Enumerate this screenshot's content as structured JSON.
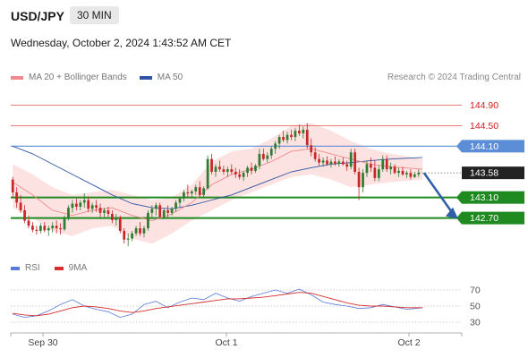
{
  "header": {
    "symbol": "USD/JPY",
    "timeframe": "30 MIN",
    "timestamp": "Wednesday, October 2, 2024 1:43:52 AM CET"
  },
  "legend": {
    "ma20_label": "MA 20 + Bollinger Bands",
    "ma50_label": "MA 50",
    "credit": "Research © 2024 Trading Central"
  },
  "rsi_legend": {
    "rsi_label": "RSI",
    "ma9_label": "9MA"
  },
  "colors": {
    "ma20": "#f08a8a",
    "ma50": "#2f55a4",
    "bollinger_fill": "#fde2e2",
    "candle_up": "#2e7d32",
    "candle_down": "#c62828",
    "resistance": "#e05555",
    "pivot": "#5b8ed6",
    "support": "#1f8a1f",
    "rsi": "#5a7bd8",
    "rsi_ma": "#d32f2f",
    "arrow": "#2f5fa7"
  },
  "chart_data": [
    {
      "type": "candlestick",
      "title": "USD/JPY 30 MIN",
      "x_labels": [
        "Sep 30",
        "Oct 1",
        "Oct 2"
      ],
      "y_range": [
        142.1,
        145.1
      ],
      "levels": [
        {
          "value": 144.9,
          "label": "144.90",
          "kind": "resistance"
        },
        {
          "value": 144.5,
          "label": "144.50",
          "kind": "resistance"
        },
        {
          "value": 144.1,
          "label": "144.10",
          "kind": "pivot"
        },
        {
          "value": 143.58,
          "label": "143.58",
          "kind": "last"
        },
        {
          "value": 143.1,
          "label": "143.10",
          "kind": "support"
        },
        {
          "value": 142.7,
          "label": "142.70",
          "kind": "support"
        }
      ],
      "candles": [
        [
          143.45,
          143.5,
          143.1,
          143.2
        ],
        [
          143.2,
          143.3,
          142.9,
          143.0
        ],
        [
          143.0,
          143.15,
          142.8,
          142.85
        ],
        [
          142.85,
          142.95,
          142.6,
          142.65
        ],
        [
          142.65,
          142.75,
          142.5,
          142.55
        ],
        [
          142.55,
          142.62,
          142.42,
          142.47
        ],
        [
          142.47,
          142.55,
          142.38,
          142.45
        ],
        [
          142.45,
          142.6,
          142.4,
          142.55
        ],
        [
          142.55,
          142.62,
          142.42,
          142.46
        ],
        [
          142.46,
          142.55,
          142.35,
          142.5
        ],
        [
          142.5,
          142.62,
          142.42,
          142.55
        ],
        [
          142.55,
          142.65,
          142.4,
          142.5
        ],
        [
          142.5,
          142.6,
          142.38,
          142.48
        ],
        [
          142.48,
          142.75,
          142.45,
          142.7
        ],
        [
          142.7,
          142.95,
          142.65,
          142.9
        ],
        [
          142.9,
          143.05,
          142.8,
          142.98
        ],
        [
          142.98,
          143.08,
          142.85,
          142.92
        ],
        [
          142.92,
          143.05,
          142.85,
          143.0
        ],
        [
          143.0,
          143.18,
          142.9,
          143.05
        ],
        [
          143.05,
          143.12,
          142.82,
          142.88
        ],
        [
          142.88,
          143.0,
          142.8,
          142.95
        ],
        [
          142.95,
          143.05,
          142.82,
          142.9
        ],
        [
          142.9,
          142.98,
          142.72,
          142.8
        ],
        [
          142.8,
          142.9,
          142.7,
          142.85
        ],
        [
          142.85,
          142.92,
          142.72,
          142.78
        ],
        [
          142.78,
          142.85,
          142.6,
          142.66
        ],
        [
          142.66,
          142.78,
          142.55,
          142.72
        ],
        [
          142.72,
          142.75,
          142.4,
          142.45
        ],
        [
          142.45,
          142.5,
          142.2,
          142.28
        ],
        [
          142.28,
          142.4,
          142.15,
          142.3
        ],
        [
          142.3,
          142.45,
          142.25,
          142.4
        ],
        [
          142.4,
          142.55,
          142.35,
          142.5
        ],
        [
          142.5,
          142.62,
          142.35,
          142.4
        ],
        [
          142.4,
          142.55,
          142.32,
          142.5
        ],
        [
          142.5,
          142.85,
          142.45,
          142.8
        ],
        [
          142.8,
          142.95,
          142.7,
          142.88
        ],
        [
          142.88,
          143.0,
          142.75,
          142.95
        ],
        [
          142.95,
          143.0,
          142.68,
          142.72
        ],
        [
          142.72,
          142.88,
          142.68,
          142.85
        ],
        [
          142.85,
          142.95,
          142.72,
          142.8
        ],
        [
          142.8,
          142.92,
          142.75,
          142.88
        ],
        [
          142.88,
          143.05,
          142.82,
          143.0
        ],
        [
          143.0,
          143.12,
          142.92,
          143.08
        ],
        [
          143.08,
          143.25,
          143.02,
          143.2
        ],
        [
          143.2,
          143.35,
          143.1,
          143.18
        ],
        [
          143.18,
          143.25,
          143.08,
          143.22
        ],
        [
          143.22,
          143.35,
          143.15,
          143.3
        ],
        [
          143.3,
          143.42,
          143.12,
          143.15
        ],
        [
          143.15,
          143.32,
          143.08,
          143.28
        ],
        [
          143.28,
          143.92,
          143.25,
          143.85
        ],
        [
          143.85,
          143.95,
          143.55,
          143.6
        ],
        [
          143.6,
          143.75,
          143.5,
          143.7
        ],
        [
          143.7,
          143.82,
          143.6,
          143.65
        ],
        [
          143.65,
          143.72,
          143.55,
          143.6
        ],
        [
          143.6,
          143.7,
          143.5,
          143.65
        ],
        [
          143.65,
          143.75,
          143.55,
          143.6
        ],
        [
          143.6,
          143.68,
          143.48,
          143.55
        ],
        [
          143.55,
          143.65,
          143.45,
          143.5
        ],
        [
          143.5,
          143.62,
          143.42,
          143.58
        ],
        [
          143.58,
          143.72,
          143.5,
          143.68
        ],
        [
          143.68,
          143.78,
          143.55,
          143.62
        ],
        [
          143.62,
          143.75,
          143.58,
          143.72
        ],
        [
          143.72,
          144.05,
          143.65,
          143.95
        ],
        [
          143.95,
          144.05,
          143.82,
          143.85
        ],
        [
          143.85,
          143.98,
          143.78,
          143.92
        ],
        [
          143.92,
          144.1,
          143.85,
          144.05
        ],
        [
          144.05,
          144.2,
          143.95,
          144.15
        ],
        [
          144.15,
          144.32,
          144.05,
          144.28
        ],
        [
          144.28,
          144.4,
          144.18,
          144.22
        ],
        [
          144.22,
          144.38,
          144.15,
          144.32
        ],
        [
          144.32,
          144.42,
          144.22,
          144.28
        ],
        [
          144.28,
          144.45,
          144.2,
          144.4
        ],
        [
          144.4,
          144.52,
          144.3,
          144.35
        ],
        [
          144.35,
          144.48,
          144.25,
          144.42
        ],
        [
          144.42,
          144.55,
          144.05,
          144.12
        ],
        [
          144.12,
          144.25,
          143.9,
          143.98
        ],
        [
          143.98,
          144.08,
          143.8,
          143.85
        ],
        [
          143.85,
          143.95,
          143.72,
          143.78
        ],
        [
          143.78,
          143.88,
          143.7,
          143.82
        ],
        [
          143.82,
          143.9,
          143.72,
          143.75
        ],
        [
          143.75,
          143.85,
          143.68,
          143.8
        ],
        [
          143.8,
          143.9,
          143.72,
          143.76
        ],
        [
          143.76,
          143.85,
          143.7,
          143.8
        ],
        [
          143.8,
          143.88,
          143.72,
          143.75
        ],
        [
          143.75,
          143.82,
          143.62,
          143.7
        ],
        [
          143.7,
          144.05,
          143.65,
          143.98
        ],
        [
          143.98,
          144.05,
          143.55,
          143.6
        ],
        [
          143.6,
          143.68,
          143.05,
          143.3
        ],
        [
          143.3,
          143.65,
          143.2,
          143.58
        ],
        [
          143.58,
          143.82,
          143.5,
          143.75
        ],
        [
          143.75,
          143.88,
          143.6,
          143.68
        ],
        [
          143.68,
          143.82,
          143.42,
          143.48
        ],
        [
          143.48,
          143.72,
          143.42,
          143.65
        ],
        [
          143.65,
          143.92,
          143.6,
          143.85
        ],
        [
          143.85,
          143.92,
          143.6,
          143.65
        ],
        [
          143.65,
          143.78,
          143.55,
          143.7
        ],
        [
          143.7,
          143.75,
          143.55,
          143.58
        ],
        [
          143.58,
          143.68,
          143.5,
          143.62
        ],
        [
          143.62,
          143.7,
          143.52,
          143.55
        ],
        [
          143.55,
          143.62,
          143.48,
          143.58
        ],
        [
          143.58,
          143.65,
          143.45,
          143.5
        ],
        [
          143.5,
          143.6,
          143.48,
          143.55
        ],
        [
          143.55,
          143.65,
          143.5,
          143.58
        ]
      ],
      "ma20": [
        [
          0,
          143.4
        ],
        [
          5,
          143.15
        ],
        [
          10,
          142.85
        ],
        [
          15,
          142.75
        ],
        [
          20,
          142.85
        ],
        [
          25,
          142.9
        ],
        [
          30,
          142.75
        ],
        [
          35,
          142.65
        ],
        [
          40,
          142.78
        ],
        [
          45,
          143.0
        ],
        [
          50,
          143.35
        ],
        [
          55,
          143.55
        ],
        [
          60,
          143.65
        ],
        [
          65,
          143.8
        ],
        [
          70,
          144.0
        ],
        [
          75,
          144.05
        ],
        [
          80,
          143.95
        ],
        [
          85,
          143.85
        ],
        [
          90,
          143.75
        ],
        [
          95,
          143.7
        ],
        [
          103,
          143.65
        ]
      ],
      "ma50": [
        [
          0,
          144.1
        ],
        [
          5,
          143.95
        ],
        [
          10,
          143.75
        ],
        [
          15,
          143.55
        ],
        [
          20,
          143.35
        ],
        [
          25,
          143.15
        ],
        [
          30,
          142.98
        ],
        [
          35,
          142.9
        ],
        [
          40,
          142.88
        ],
        [
          45,
          142.95
        ],
        [
          50,
          143.05
        ],
        [
          55,
          143.15
        ],
        [
          60,
          143.3
        ],
        [
          65,
          143.45
        ],
        [
          70,
          143.6
        ],
        [
          75,
          143.68
        ],
        [
          80,
          143.75
        ],
        [
          85,
          143.78
        ],
        [
          90,
          143.82
        ],
        [
          95,
          143.85
        ],
        [
          103,
          143.88
        ]
      ],
      "bollinger_upper": [
        [
          0,
          143.75
        ],
        [
          5,
          143.55
        ],
        [
          10,
          143.3
        ],
        [
          15,
          143.15
        ],
        [
          20,
          143.2
        ],
        [
          25,
          143.25
        ],
        [
          30,
          143.15
        ],
        [
          35,
          143.05
        ],
        [
          40,
          143.1
        ],
        [
          45,
          143.35
        ],
        [
          50,
          143.8
        ],
        [
          55,
          144.0
        ],
        [
          60,
          144.05
        ],
        [
          65,
          144.25
        ],
        [
          70,
          144.5
        ],
        [
          75,
          144.55
        ],
        [
          80,
          144.4
        ],
        [
          85,
          144.2
        ],
        [
          90,
          144.05
        ],
        [
          95,
          143.95
        ],
        [
          103,
          143.85
        ]
      ],
      "bollinger_lower": [
        [
          0,
          142.9
        ],
        [
          5,
          142.7
        ],
        [
          10,
          142.45
        ],
        [
          15,
          142.35
        ],
        [
          20,
          142.5
        ],
        [
          25,
          142.55
        ],
        [
          30,
          142.3
        ],
        [
          35,
          142.2
        ],
        [
          40,
          142.4
        ],
        [
          45,
          142.65
        ],
        [
          50,
          142.85
        ],
        [
          55,
          143.05
        ],
        [
          60,
          143.2
        ],
        [
          65,
          143.35
        ],
        [
          70,
          143.5
        ],
        [
          75,
          143.55
        ],
        [
          80,
          143.45
        ],
        [
          85,
          143.3
        ],
        [
          90,
          143.35
        ],
        [
          95,
          143.4
        ],
        [
          103,
          143.45
        ]
      ],
      "projection": {
        "from": 143.58,
        "to": 142.7
      }
    },
    {
      "type": "line",
      "title": "RSI",
      "y_ticks": [
        70,
        50,
        30
      ],
      "y_range": [
        20,
        80
      ],
      "series": [
        {
          "name": "RSI",
          "x": [
            0,
            3,
            6,
            9,
            12,
            15,
            18,
            21,
            24,
            27,
            30,
            33,
            36,
            39,
            42,
            45,
            48,
            51,
            54,
            57,
            60,
            63,
            66,
            69,
            72,
            75,
            78,
            81,
            84,
            87,
            90,
            93,
            96,
            99,
            103
          ],
          "values": [
            40,
            36,
            38,
            44,
            52,
            58,
            50,
            46,
            43,
            36,
            40,
            52,
            56,
            48,
            55,
            60,
            58,
            66,
            60,
            56,
            62,
            66,
            70,
            66,
            71,
            64,
            55,
            52,
            50,
            47,
            48,
            52,
            49,
            46,
            48
          ]
        },
        {
          "name": "9MA",
          "x": [
            0,
            3,
            6,
            9,
            12,
            15,
            18,
            21,
            24,
            27,
            30,
            33,
            36,
            39,
            42,
            45,
            48,
            51,
            54,
            57,
            60,
            63,
            66,
            69,
            72,
            75,
            78,
            81,
            84,
            87,
            90,
            93,
            96,
            99,
            103
          ],
          "values": [
            41,
            39,
            38,
            40,
            44,
            48,
            50,
            49,
            47,
            44,
            42,
            44,
            47,
            49,
            51,
            53,
            55,
            57,
            59,
            59,
            60,
            61,
            63,
            65,
            67,
            66,
            62,
            58,
            54,
            51,
            50,
            50,
            49,
            48,
            48
          ]
        }
      ]
    }
  ]
}
